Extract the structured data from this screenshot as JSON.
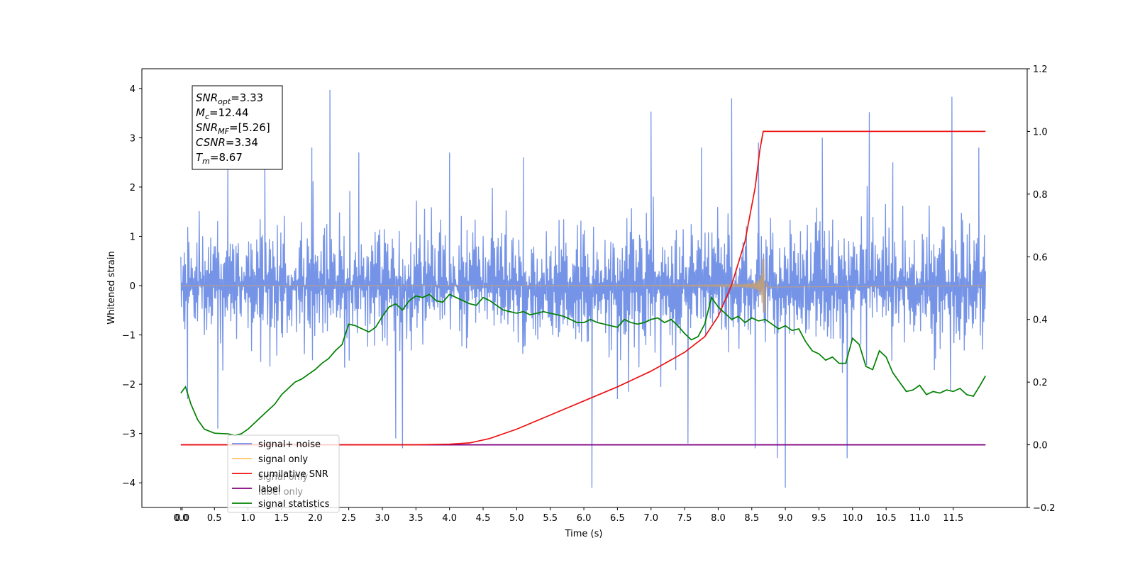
{
  "chart_data": {
    "type": "line",
    "xlabel": "Time (s)",
    "ylabel": "Whitened strain",
    "xlim": [
      -0.58,
      12.6
    ],
    "ylim": [
      -4.5,
      4.4
    ],
    "y2lim": [
      -0.2,
      1.2
    ],
    "x_ticks": [
      "0.0",
      "0.0",
      "0.5",
      "1.0",
      "1.5",
      "2.0",
      "2.5",
      "3.0",
      "3.5",
      "4.0",
      "4.5",
      "5.0",
      "5.5",
      "6.0",
      "6.5",
      "7.0",
      "7.5",
      "8.0",
      "8.5",
      "9.0",
      "9.5",
      "10.0",
      "10.5",
      "11.0",
      "11.5"
    ],
    "x_tick_values": [
      0,
      0.02,
      0.5,
      1.0,
      1.5,
      2.0,
      2.5,
      3.0,
      3.5,
      4.0,
      4.5,
      5.0,
      5.5,
      6.0,
      6.5,
      7.0,
      7.5,
      8.0,
      8.5,
      9.0,
      9.5,
      10.0,
      10.5,
      11.0,
      11.5
    ],
    "y_ticks": [
      "4",
      "3",
      "2",
      "1",
      "0",
      "−1",
      "−2",
      "−3",
      "−4"
    ],
    "y_tick_values": [
      4,
      3,
      2,
      1,
      0,
      -1,
      -2,
      -3,
      -4
    ],
    "y2_ticks": [
      "1.2",
      "1.0",
      "0.8",
      "0.6",
      "0.4",
      "0.2",
      "0.0",
      "−0.2"
    ],
    "y2_tick_values": [
      1.2,
      1.0,
      0.8,
      0.6,
      0.4,
      0.2,
      0.0,
      -0.2
    ],
    "grid": false,
    "legend_position": "lower-left",
    "annotation": {
      "lines": [
        {
          "sym": "SNR",
          "sub": "opt",
          "val": "=3.33"
        },
        {
          "sym": "M",
          "sub": "c",
          "val": "=12.44"
        },
        {
          "sym": "SNR",
          "sub": "MF",
          "val": "=[5.26]"
        },
        {
          "sym": "CSNR",
          "sub": "",
          "val": "=3.34"
        },
        {
          "sym": "T",
          "sub": "m",
          "val": "=8.67"
        }
      ]
    },
    "series": [
      {
        "name": "signal+ noise",
        "axis": "left",
        "color": "#6f8ee6",
        "kind": "noise",
        "x_range": [
          0,
          11.98
        ],
        "typical_envelope": [
          -1.9,
          1.9
        ],
        "spikes": [
          {
            "x": 0.1,
            "y": -2.3
          },
          {
            "x": 0.55,
            "y": -2.9
          },
          {
            "x": 0.7,
            "y": 2.5
          },
          {
            "x": 1.25,
            "y": 2.6
          },
          {
            "x": 1.95,
            "y": 2.8
          },
          {
            "x": 2.22,
            "y": 3.97
          },
          {
            "x": 2.65,
            "y": 2.7
          },
          {
            "x": 3.2,
            "y": -3.1
          },
          {
            "x": 3.3,
            "y": -3.3
          },
          {
            "x": 4.0,
            "y": 2.7
          },
          {
            "x": 5.1,
            "y": 2.6
          },
          {
            "x": 6.12,
            "y": -4.1
          },
          {
            "x": 6.5,
            "y": -2.3
          },
          {
            "x": 7.0,
            "y": 3.53
          },
          {
            "x": 7.55,
            "y": -3.2
          },
          {
            "x": 7.75,
            "y": 2.8
          },
          {
            "x": 8.2,
            "y": 3.8
          },
          {
            "x": 8.55,
            "y": -3.3
          },
          {
            "x": 8.6,
            "y": 2.9
          },
          {
            "x": 8.88,
            "y": -3.5
          },
          {
            "x": 9.0,
            "y": -4.1
          },
          {
            "x": 9.55,
            "y": 3.0
          },
          {
            "x": 9.92,
            "y": -3.5
          },
          {
            "x": 10.25,
            "y": 3.52
          },
          {
            "x": 10.6,
            "y": 2.5
          },
          {
            "x": 11.48,
            "y": 3.83
          },
          {
            "x": 11.88,
            "y": 2.8
          }
        ]
      },
      {
        "name": "signal only",
        "axis": "left",
        "color": "#c8a06e",
        "kind": "chirp",
        "x_range": [
          0,
          11.98
        ],
        "merger_time": 8.67,
        "peak_amplitude": 0.55
      },
      {
        "name": "cumilative SNR",
        "axis": "right",
        "color": "#ee1111",
        "x": [
          0,
          3.5,
          4.0,
          4.3,
          4.6,
          5.0,
          5.5,
          6.0,
          6.5,
          7.0,
          7.5,
          7.8,
          8.0,
          8.2,
          8.4,
          8.55,
          8.62,
          8.67,
          11.98
        ],
        "values": [
          0,
          0,
          0.002,
          0.006,
          0.02,
          0.05,
          0.095,
          0.14,
          0.185,
          0.235,
          0.295,
          0.345,
          0.41,
          0.51,
          0.65,
          0.82,
          0.94,
          1.0,
          1.0
        ]
      },
      {
        "name": "label",
        "axis": "right",
        "color": "#800080",
        "x": [
          0,
          11.98
        ],
        "values": [
          0,
          0
        ]
      },
      {
        "name": "signal statistics",
        "axis": "right",
        "color": "#008000",
        "x": [
          0,
          0.07,
          0.15,
          0.25,
          0.35,
          0.5,
          0.6,
          0.7,
          0.8,
          0.9,
          1.0,
          1.1,
          1.2,
          1.3,
          1.4,
          1.5,
          1.6,
          1.7,
          1.8,
          1.9,
          2.0,
          2.1,
          2.2,
          2.3,
          2.4,
          2.5,
          2.6,
          2.7,
          2.8,
          2.9,
          3.0,
          3.1,
          3.2,
          3.3,
          3.4,
          3.5,
          3.6,
          3.7,
          3.8,
          3.9,
          4.0,
          4.1,
          4.2,
          4.3,
          4.4,
          4.5,
          4.6,
          4.7,
          4.8,
          4.9,
          5.0,
          5.1,
          5.2,
          5.3,
          5.4,
          5.5,
          5.6,
          5.7,
          5.8,
          5.9,
          6.0,
          6.1,
          6.2,
          6.3,
          6.4,
          6.5,
          6.6,
          6.7,
          6.8,
          6.9,
          7.0,
          7.1,
          7.2,
          7.3,
          7.4,
          7.5,
          7.6,
          7.7,
          7.8,
          7.9,
          8.0,
          8.1,
          8.2,
          8.3,
          8.4,
          8.5,
          8.6,
          8.7,
          8.8,
          8.9,
          9.0,
          9.1,
          9.2,
          9.3,
          9.4,
          9.5,
          9.6,
          9.7,
          9.8,
          9.9,
          10.0,
          10.1,
          10.2,
          10.3,
          10.4,
          10.5,
          10.6,
          10.7,
          10.8,
          10.9,
          11.0,
          11.1,
          11.2,
          11.3,
          11.4,
          11.5,
          11.6,
          11.7,
          11.8,
          11.9,
          11.98
        ],
        "values": [
          0.165,
          0.185,
          0.13,
          0.08,
          0.05,
          0.037,
          0.036,
          0.035,
          0.03,
          0.035,
          0.05,
          0.07,
          0.09,
          0.11,
          0.13,
          0.16,
          0.18,
          0.2,
          0.21,
          0.225,
          0.24,
          0.26,
          0.275,
          0.3,
          0.32,
          0.385,
          0.38,
          0.37,
          0.36,
          0.375,
          0.41,
          0.44,
          0.45,
          0.43,
          0.46,
          0.475,
          0.47,
          0.48,
          0.46,
          0.455,
          0.48,
          0.47,
          0.46,
          0.45,
          0.445,
          0.47,
          0.46,
          0.445,
          0.43,
          0.425,
          0.42,
          0.425,
          0.415,
          0.42,
          0.425,
          0.42,
          0.415,
          0.41,
          0.4,
          0.39,
          0.39,
          0.4,
          0.39,
          0.385,
          0.38,
          0.375,
          0.4,
          0.39,
          0.385,
          0.39,
          0.4,
          0.405,
          0.39,
          0.4,
          0.38,
          0.355,
          0.335,
          0.345,
          0.385,
          0.47,
          0.44,
          0.42,
          0.4,
          0.41,
          0.39,
          0.405,
          0.395,
          0.4,
          0.385,
          0.37,
          0.38,
          0.365,
          0.37,
          0.33,
          0.3,
          0.29,
          0.27,
          0.28,
          0.26,
          0.26,
          0.34,
          0.32,
          0.25,
          0.24,
          0.3,
          0.28,
          0.23,
          0.2,
          0.17,
          0.175,
          0.19,
          0.16,
          0.17,
          0.165,
          0.175,
          0.17,
          0.18,
          0.16,
          0.155,
          0.19,
          0.22
        ]
      }
    ],
    "legend": [
      {
        "label": "signal+ noise",
        "color": "#6f8ee6"
      },
      {
        "label": "signal only",
        "color": "#ffc266"
      },
      {
        "label": "cumilative SNR",
        "color": "#ee1111"
      },
      {
        "label": "label",
        "color": "#800080"
      },
      {
        "label": "signal statistics",
        "color": "#008000"
      }
    ],
    "legend_occluded_text": [
      "signal only",
      "label only"
    ]
  }
}
